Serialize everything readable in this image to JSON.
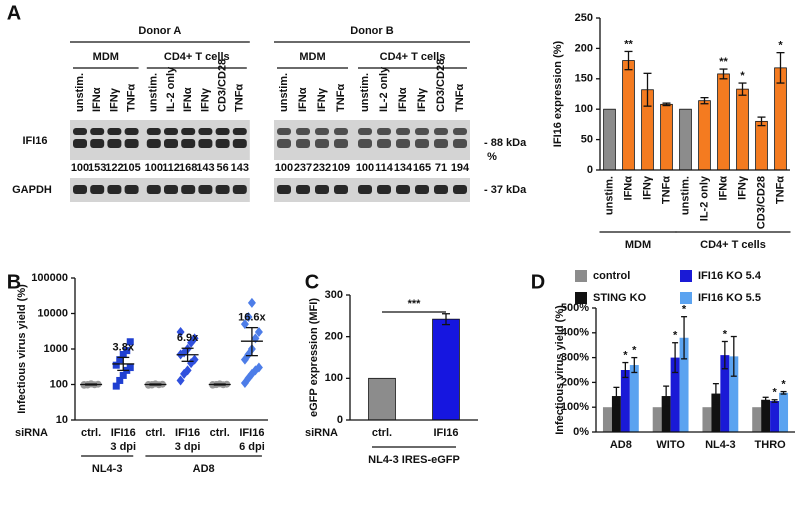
{
  "blot": {
    "panel_label": "A",
    "bands": [
      "IFI16",
      "GAPDH"
    ],
    "markers": [
      "- 88 kDa",
      "- 37 kDa"
    ],
    "percent_unit": "%",
    "donors": [
      {
        "name": "Donor A",
        "groups": [
          {
            "name": "MDM",
            "lanes": [
              "unstim.",
              "IFNα",
              "IFNγ",
              "TNFα"
            ],
            "percent": [
              100,
              153,
              122,
              105
            ]
          },
          {
            "name": "CD4+ T cells",
            "lanes": [
              "unstim.",
              "IL-2 only",
              "IFNα",
              "IFNγ",
              "CD3/CD28",
              "TNFα"
            ],
            "percent": [
              100,
              112,
              168,
              143,
              56,
              143
            ]
          }
        ]
      },
      {
        "name": "Donor B",
        "groups": [
          {
            "name": "MDM",
            "lanes": [
              "unstim.",
              "IFNα",
              "IFNγ",
              "TNFα"
            ],
            "percent": [
              100,
              237,
              232,
              109
            ]
          },
          {
            "name": "CD4+ T cells",
            "lanes": [
              "unstim.",
              "IL-2 only",
              "IFNα",
              "IFNγ",
              "CD3/CD28",
              "TNFα"
            ],
            "percent": [
              100,
              114,
              134,
              165,
              71,
              194
            ]
          }
        ]
      }
    ]
  },
  "chart_data": [
    {
      "type": "bar",
      "ylabel": "IFI16 expression (%)",
      "rotate_labels": true,
      "categories": [
        "unstim.",
        "IFNα",
        "IFNγ",
        "TNFα",
        "unstim.",
        "IL-2 only",
        "IFNα",
        "IFNγ",
        "CD3/CD28",
        "TNFα"
      ],
      "category_groups": [
        "MDM",
        "MDM",
        "MDM",
        "MDM",
        "CD4+ T cells",
        "CD4+ T cells",
        "CD4+ T cells",
        "CD4+ T cells",
        "CD4+ T cells",
        "CD4+ T cells"
      ],
      "values": [
        100,
        180,
        132,
        108,
        100,
        114,
        158,
        133,
        80,
        168
      ],
      "errors": [
        null,
        15,
        27,
        2,
        null,
        5,
        8,
        10,
        7,
        25
      ],
      "colors": [
        "#8c8c8c",
        "#f47b20",
        "#f47b20",
        "#f47b20",
        "#8c8c8c",
        "#f47b20",
        "#f47b20",
        "#f47b20",
        "#f47b20",
        "#f47b20"
      ],
      "significance": [
        null,
        "**",
        null,
        null,
        null,
        null,
        "**",
        "*",
        null,
        "*"
      ],
      "ylim": [
        0,
        250
      ],
      "yticks": [
        0,
        50,
        100,
        150,
        200,
        250
      ]
    },
    {
      "type": "strip",
      "panel_label": "B",
      "ylabel": "Infectious virus yield (%)",
      "log_scale": true,
      "x_prefix": "siRNA",
      "categories": [
        "ctrl.",
        "IFI16",
        "ctrl.",
        "IFI16",
        "ctrl.",
        "IFI16"
      ],
      "sublabels": [
        null,
        "3 dpi",
        null,
        "3 dpi",
        null,
        "6 dpi"
      ],
      "category_groups": [
        "NL4-3",
        "NL4-3",
        "AD8",
        "AD8",
        "AD8",
        "AD8"
      ],
      "points": [
        [
          95,
          100,
          105,
          98,
          102,
          100,
          97,
          103
        ],
        [
          90,
          130,
          180,
          250,
          300,
          350,
          500,
          700,
          900,
          1600
        ],
        [
          95,
          100,
          104,
          98,
          102,
          100,
          97
        ],
        [
          130,
          200,
          250,
          400,
          500,
          700,
          800,
          1000,
          1500,
          2000,
          3000
        ],
        [
          96,
          100,
          104,
          98,
          102,
          100,
          99
        ],
        [
          110,
          150,
          200,
          250,
          300,
          500,
          700,
          1000,
          2000,
          3000,
          5000,
          8000,
          20000
        ]
      ],
      "means": [
        100,
        380,
        100,
        690,
        100,
        1660
      ],
      "lower": [
        97,
        250,
        97,
        450,
        97,
        650
      ],
      "upper": [
        103,
        580,
        103,
        1050,
        103,
        4000
      ],
      "colors": [
        "#999999",
        "#1f3fd1",
        "#999999",
        "#3050dd",
        "#999999",
        "#4d7de8"
      ],
      "markers": [
        "circle",
        "square",
        "circle",
        "diamond",
        "circle",
        "diamond"
      ],
      "fold_labels": [
        null,
        "3.8x",
        null,
        "6.9x",
        null,
        "16.6x"
      ],
      "ylim": [
        10,
        100000
      ],
      "yticks": [
        10,
        100,
        1000,
        10000,
        100000
      ]
    },
    {
      "type": "bar",
      "panel_label": "C",
      "ylabel": "eGFP expression (MFI)",
      "x_prefix": "siRNA",
      "categories": [
        "ctrl.",
        "IFI16"
      ],
      "category_groups": [
        "NL4-3 IRES-eGFP",
        "NL4-3 IRES-eGFP"
      ],
      "values": [
        100,
        242
      ],
      "errors": [
        null,
        13
      ],
      "colors": [
        "#8c8c8c",
        "#1616e0"
      ],
      "bracket_label": "***",
      "ylim": [
        0,
        300
      ],
      "yticks": [
        0,
        100,
        200,
        300
      ]
    },
    {
      "type": "grouped_bar",
      "panel_label": "D",
      "ylabel": "Infectious virus yield (%)",
      "legend": "top",
      "categories": [
        "AD8",
        "WITO",
        "NL4-3",
        "THRO"
      ],
      "series": [
        {
          "name": "control",
          "color": "#8c8c8c",
          "values": [
            100,
            100,
            100,
            100
          ],
          "errors": [
            null,
            null,
            null,
            null
          ],
          "significance": [
            null,
            null,
            null,
            null
          ]
        },
        {
          "name": "STING KO",
          "color": "#111111",
          "values": [
            145,
            145,
            155,
            130
          ],
          "errors": [
            35,
            40,
            40,
            10
          ],
          "significance": [
            null,
            null,
            null,
            null
          ]
        },
        {
          "name": "IFI16 KO 5.4",
          "color": "#1a1ad6",
          "values": [
            250,
            300,
            310,
            125
          ],
          "errors": [
            30,
            60,
            55,
            5
          ],
          "significance": [
            "*",
            "*",
            "*",
            "*"
          ]
        },
        {
          "name": "IFI16 KO 5.5",
          "color": "#5ba3f0",
          "values": [
            270,
            380,
            305,
            158
          ],
          "errors": [
            30,
            85,
            80,
            5
          ],
          "significance": [
            "*",
            "*",
            null,
            "*"
          ]
        }
      ],
      "ylim": [
        0,
        500
      ],
      "yticks": [
        {
          "value": 0,
          "label": "0%"
        },
        {
          "value": 100,
          "label": "100%"
        },
        {
          "value": 200,
          "label": "200%"
        },
        {
          "value": 300,
          "label": "300%"
        },
        {
          "value": 400,
          "label": "400%"
        },
        {
          "value": 500,
          "label": "500%"
        }
      ]
    }
  ]
}
